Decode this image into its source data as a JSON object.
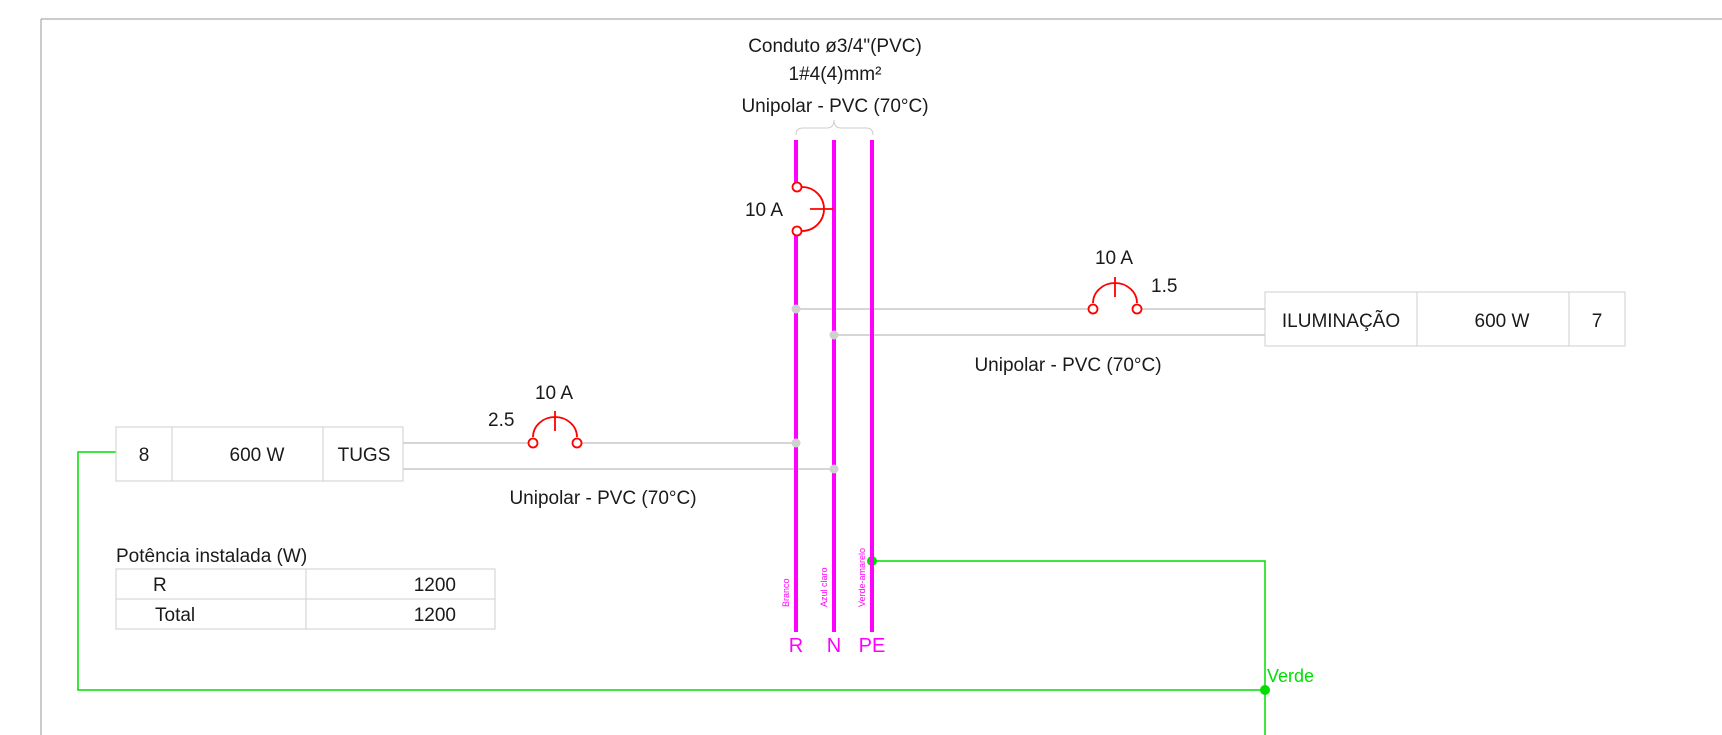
{
  "conduit": {
    "line1": "Conduto ø3/4\"(PVC)",
    "line2": "1#4(4)mm²",
    "line3": "Unipolar - PVC (70°C)"
  },
  "main_breaker": {
    "rating": "10 A"
  },
  "bus": {
    "R": {
      "label": "R",
      "wire_color": "Branco"
    },
    "N": {
      "label": "N",
      "wire_color": "Azul claro"
    },
    "PE": {
      "label": "PE",
      "wire_color": "Verde-amarelo"
    }
  },
  "circuit_ilum": {
    "breaker_rating": "10 A",
    "section": "1.5",
    "cable_type": "Unipolar - PVC (70°C)",
    "name": "ILUMINAÇÃO",
    "power": "600 W",
    "number": "7"
  },
  "circuit_tugs": {
    "breaker_rating": "10 A",
    "section": "2.5",
    "cable_type": "Unipolar - PVC (70°C)",
    "number": "8",
    "power": "600 W",
    "name": "TUGS"
  },
  "power_table": {
    "title": "Potência instalada (W)",
    "rows": [
      {
        "label": "R",
        "value": "1200"
      },
      {
        "label": "Total",
        "value": "1200"
      }
    ]
  },
  "ground": {
    "label": "Verde"
  },
  "colors": {
    "phase": "#ff00ff",
    "breaker": "#ff0000",
    "ground": "#00dd00",
    "line": "#c8c8c8"
  }
}
